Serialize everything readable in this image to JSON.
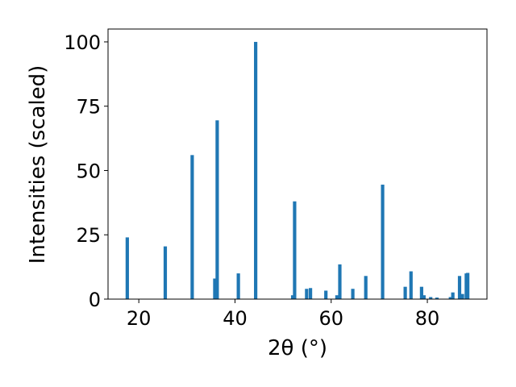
{
  "chart_data": {
    "type": "bar",
    "xlabel": "2θ (°)",
    "ylabel": "Intensities (scaled)",
    "xlim": [
      13.6,
      92.4
    ],
    "ylim": [
      0,
      105
    ],
    "x_ticks": [
      20,
      40,
      60,
      80
    ],
    "y_ticks": [
      0,
      25,
      50,
      75,
      100
    ],
    "x_tick_labels": [
      "20",
      "40",
      "60",
      "80"
    ],
    "y_tick_labels": [
      "0",
      "25",
      "50",
      "75",
      "100"
    ],
    "bar_color": "#1f77b4",
    "bar_width": 0.7,
    "grid": false,
    "x": [
      17.6,
      25.5,
      31.1,
      35.8,
      36.3,
      40.7,
      44.3,
      52.0,
      52.4,
      54.9,
      55.7,
      58.9,
      61.2,
      61.8,
      64.5,
      67.2,
      70.7,
      75.4,
      76.6,
      78.8,
      79.3,
      80.7,
      82.0,
      84.8,
      85.3,
      86.7,
      87.3,
      88.1,
      88.4
    ],
    "values": [
      24.0,
      20.5,
      56.0,
      8.0,
      69.5,
      10.0,
      100.0,
      1.5,
      38.0,
      4.0,
      4.3,
      3.3,
      1.5,
      13.5,
      4.0,
      9.0,
      44.5,
      4.8,
      10.8,
      4.8,
      1.5,
      0.8,
      0.6,
      0.8,
      2.6,
      9.0,
      2.0,
      10.0,
      10.2
    ]
  }
}
